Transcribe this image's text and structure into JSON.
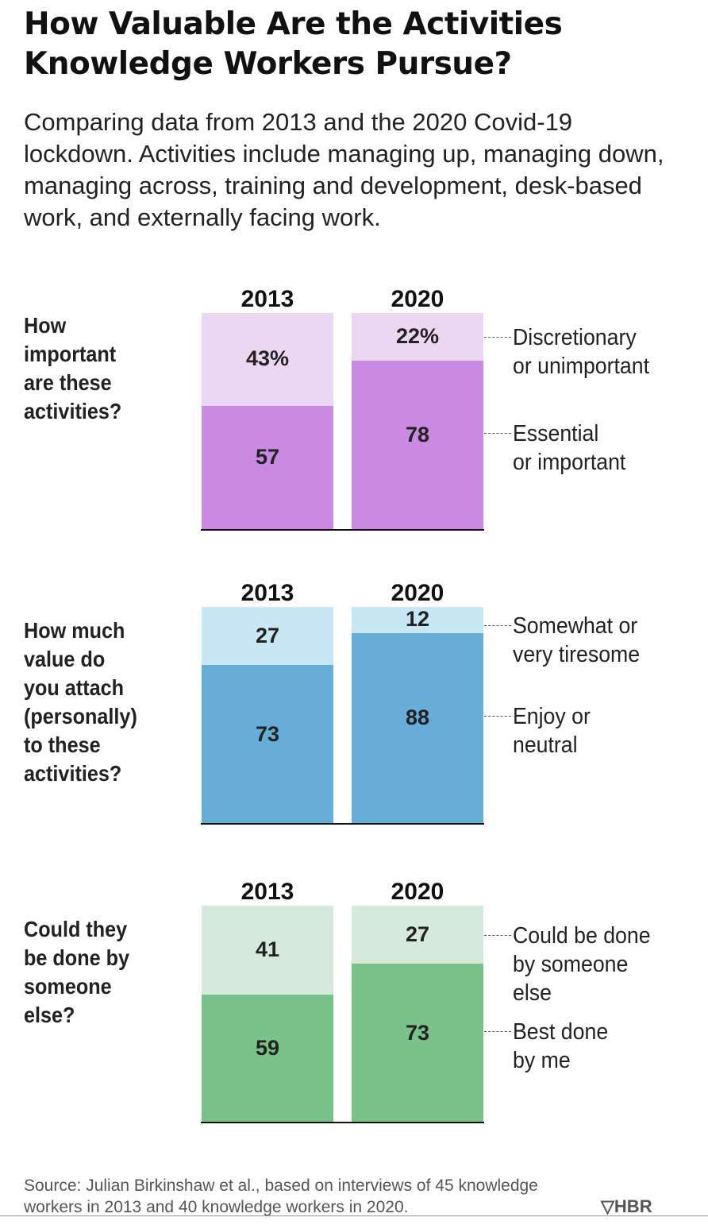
{
  "title": "How Valuable Are the Activities Knowledge Workers Pursue?",
  "subtitle": "Comparing data from 2013 and the 2020 Covid-19 lockdown. Activities include managing up, managing down, managing across, training and development, desk-based work, and externally facing work.",
  "source": "Source: Julian Birkinshaw et al., based on interviews of 45 knowledge workers in 2013 and 40 knowledge workers in 2020.",
  "logo": "HBR",
  "colors": {
    "purple_dark": "#c88ae2",
    "purple_light": "#ead7f1",
    "blue_dark": "#66aed7",
    "blue_light": "#c6e7f3",
    "green_dark": "#79c28a",
    "green_light": "#d6eadc"
  },
  "chart_data": [
    {
      "type": "bar",
      "stacked": true,
      "question": "How important are these activities?",
      "categories": [
        "2013",
        "2020"
      ],
      "series": [
        {
          "name": "Essential or important",
          "values": [
            57,
            78
          ],
          "labels": [
            "57",
            "78"
          ],
          "color": "#c88ae2"
        },
        {
          "name": "Discretionary or unimportant",
          "values": [
            43,
            22
          ],
          "labels": [
            "43%",
            "22%"
          ],
          "color": "#ead7f1"
        }
      ],
      "ylim": [
        0,
        100
      ]
    },
    {
      "type": "bar",
      "stacked": true,
      "question": "How much value do you attach (personally) to these activities?",
      "categories": [
        "2013",
        "2020"
      ],
      "series": [
        {
          "name": "Enjoy or neutral",
          "values": [
            73,
            88
          ],
          "labels": [
            "73",
            "88"
          ],
          "color": "#66aed7"
        },
        {
          "name": "Somewhat or very tiresome",
          "values": [
            27,
            12
          ],
          "labels": [
            "27",
            "12"
          ],
          "color": "#c6e7f3"
        }
      ],
      "ylim": [
        0,
        100
      ]
    },
    {
      "type": "bar",
      "stacked": true,
      "question": "Could they be done by someone else?",
      "categories": [
        "2013",
        "2020"
      ],
      "series": [
        {
          "name": "Best done by me",
          "values": [
            59,
            73
          ],
          "labels": [
            "59",
            "73"
          ],
          "color": "#79c28a"
        },
        {
          "name": "Could be done by someone else",
          "values": [
            41,
            27
          ],
          "labels": [
            "41",
            "27"
          ],
          "color": "#d6eadc"
        }
      ],
      "ylim": [
        0,
        100
      ]
    }
  ],
  "legend_lines": [
    {
      "top": [
        "Discretionary",
        "or unimportant"
      ],
      "bottom": [
        "Essential",
        "or important"
      ]
    },
    {
      "top": [
        "Somewhat or",
        "very tiresome"
      ],
      "bottom": [
        "Enjoy or",
        "neutral"
      ]
    },
    {
      "top": [
        "Could be done",
        "by someone",
        "else"
      ],
      "bottom": [
        "Best done",
        "by me"
      ]
    }
  ],
  "question_lines": [
    [
      "How",
      "important",
      "are these",
      "activities?"
    ],
    [
      "How much",
      "value do",
      "you attach",
      "(personally)",
      "to these",
      "activities?"
    ],
    [
      "Could they",
      "be done by",
      "someone",
      "else?"
    ]
  ]
}
